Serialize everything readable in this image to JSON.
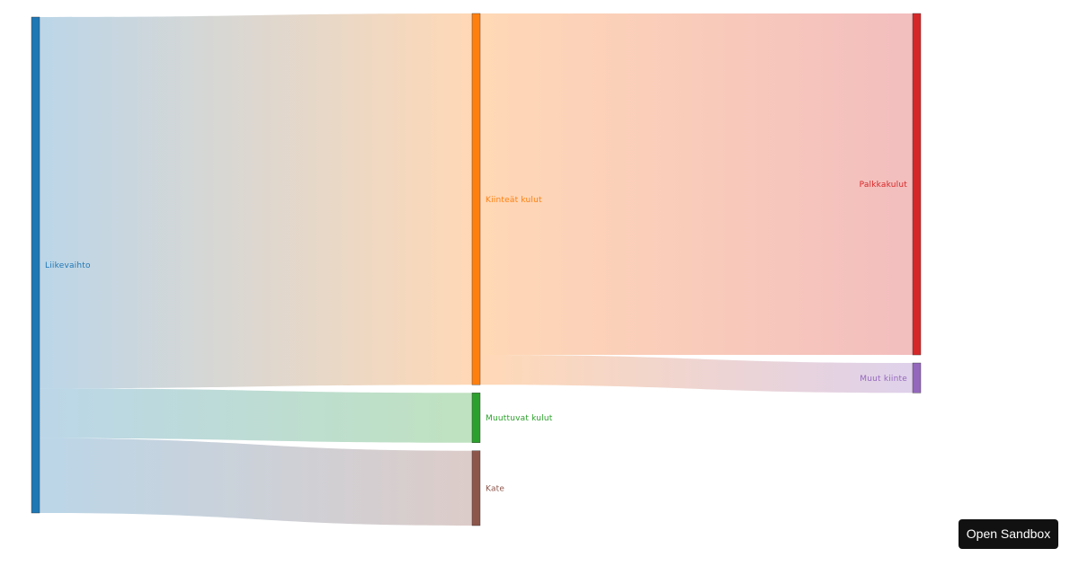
{
  "chart_data": {
    "type": "sankey",
    "nodes": [
      {
        "id": "liikevaihto",
        "name": "Liikevaihto",
        "color": "#1f77b4"
      },
      {
        "id": "kiinteat",
        "name": "Kiinteät kulut",
        "color": "#ff7f0e"
      },
      {
        "id": "muuttuvat",
        "name": "Muuttuvat kulut",
        "color": "#2ca02c"
      },
      {
        "id": "kate",
        "name": "Kate",
        "color": "#8c564b"
      },
      {
        "id": "palkka",
        "name": "Palkkakulut",
        "color": "#d62728"
      },
      {
        "id": "muutkiinte",
        "name": "Muut kiinte",
        "color": "#9467bd"
      }
    ],
    "links": [
      {
        "source": "liikevaihto",
        "target": "kiinteat",
        "value": 74.5
      },
      {
        "source": "liikevaihto",
        "target": "muuttuvat",
        "value": 10
      },
      {
        "source": "liikevaihto",
        "target": "kate",
        "value": 15
      },
      {
        "source": "kiinteat",
        "target": "palkka",
        "value": 68.5
      },
      {
        "source": "kiinteat",
        "target": "muutkiinte",
        "value": 6
      }
    ]
  },
  "sandbox_button": {
    "label": "Open Sandbox"
  }
}
